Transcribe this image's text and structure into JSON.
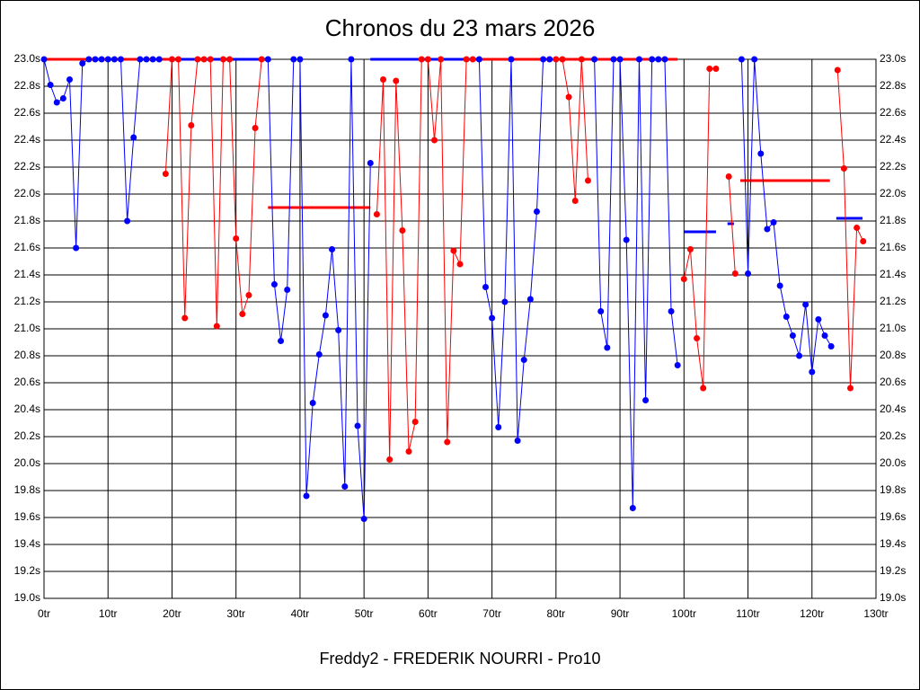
{
  "chart_data": {
    "type": "line",
    "title": "Chronos du 23 mars 2026",
    "x_label": "Freddy2 - FREDERIK NOURRI - Pro10",
    "x": [
      0,
      1,
      2,
      3,
      4,
      5,
      6,
      7,
      8,
      9,
      10,
      11,
      12,
      13,
      14,
      15,
      16,
      17,
      18,
      19,
      20,
      21,
      22,
      23,
      24,
      25,
      26,
      27,
      28,
      29,
      30,
      31,
      32,
      33,
      34,
      35,
      36,
      37,
      38,
      39,
      40,
      41,
      42,
      43,
      44,
      45,
      46,
      47,
      48,
      49,
      50,
      51,
      52,
      53,
      54,
      55,
      56,
      57,
      58,
      59,
      60,
      61,
      62,
      63,
      64,
      65,
      66,
      67,
      68,
      69,
      70,
      71,
      72,
      73,
      74,
      75,
      76,
      77,
      78,
      79,
      80,
      81,
      82,
      83,
      84,
      85,
      86,
      87,
      88,
      89,
      90,
      91,
      92,
      93,
      94,
      95,
      96,
      97,
      98,
      99,
      100,
      101,
      102,
      103,
      104,
      105,
      106,
      107,
      108,
      109,
      110,
      111,
      112,
      113,
      114,
      115,
      116,
      117,
      118,
      119,
      120,
      121,
      122,
      123,
      124,
      125,
      126,
      127,
      128
    ],
    "series": [
      {
        "color": "#0000ff",
        "values": [
          23.0,
          22.81,
          22.68,
          22.71,
          22.85,
          21.6,
          22.97,
          23.0,
          23.0,
          23.0,
          23.0,
          23.0,
          23.0,
          21.8,
          22.42,
          23.0,
          23.0,
          23.0,
          23.0,
          null,
          null,
          null,
          null,
          null,
          null,
          null,
          null,
          null,
          null,
          null,
          null,
          null,
          null,
          null,
          null,
          23.0,
          21.33,
          20.91,
          21.29,
          23.0,
          23.0,
          19.76,
          20.45,
          20.81,
          21.1,
          21.59,
          20.99,
          19.83,
          23.0,
          20.28,
          19.59,
          22.23,
          null,
          null,
          null,
          null,
          null,
          null,
          null,
          null,
          null,
          null,
          null,
          null,
          null,
          null,
          null,
          null,
          23.0,
          21.31,
          21.08,
          20.27,
          21.2,
          23.0,
          20.17,
          20.77,
          21.22,
          21.87,
          23.0,
          23.0,
          null,
          null,
          null,
          null,
          null,
          null,
          23.0,
          21.13,
          20.86,
          23.0,
          23.0,
          21.66,
          19.67,
          23.0,
          20.47,
          23.0,
          23.0,
          23.0,
          21.13,
          20.73,
          null,
          null,
          null,
          null,
          null,
          null,
          null,
          null,
          null,
          23.0,
          21.41,
          23.0,
          22.3,
          21.74,
          21.79,
          21.32,
          21.09,
          20.95,
          20.8,
          21.18,
          20.68,
          21.07,
          20.95,
          20.87,
          null,
          null,
          null,
          null,
          null
        ]
      },
      {
        "color": "#ff0000",
        "values": [
          null,
          null,
          null,
          null,
          null,
          null,
          null,
          null,
          null,
          null,
          null,
          null,
          null,
          null,
          null,
          null,
          null,
          null,
          null,
          22.15,
          23.0,
          23.0,
          21.08,
          22.51,
          23.0,
          23.0,
          23.0,
          21.02,
          23.0,
          23.0,
          21.67,
          21.11,
          21.25,
          22.49,
          23.0,
          null,
          null,
          null,
          null,
          null,
          null,
          null,
          null,
          null,
          null,
          null,
          null,
          null,
          null,
          null,
          null,
          null,
          21.85,
          22.85,
          20.03,
          22.84,
          21.73,
          20.09,
          20.31,
          23.0,
          23.0,
          22.4,
          23.0,
          20.16,
          21.58,
          21.48,
          23.0,
          23.0,
          null,
          null,
          null,
          null,
          null,
          null,
          null,
          null,
          null,
          null,
          null,
          null,
          23.0,
          23.0,
          22.72,
          21.95,
          23.0,
          22.1,
          null,
          null,
          null,
          null,
          null,
          null,
          null,
          null,
          null,
          null,
          null,
          null,
          null,
          null,
          21.37,
          21.59,
          20.93,
          20.56,
          22.93,
          22.93,
          null,
          22.13,
          21.41,
          null,
          null,
          null,
          null,
          null,
          null,
          null,
          null,
          null,
          null,
          null,
          null,
          null,
          null,
          null,
          22.92,
          22.19,
          20.56,
          21.75,
          21.65
        ]
      }
    ],
    "reference_lines": [
      {
        "color": "#ff0000",
        "value": 23.0,
        "x": [
          0,
          19.8
        ]
      },
      {
        "color": "#0000ff",
        "value": 23.0,
        "x": [
          19.8,
          35
        ]
      },
      {
        "color": "#ff0000",
        "value": 21.9,
        "x": [
          35,
          51
        ]
      },
      {
        "color": "#0000ff",
        "value": 23.0,
        "x": [
          51,
          68
        ]
      },
      {
        "color": "#ff0000",
        "value": 23.0,
        "x": [
          68,
          99
        ]
      },
      {
        "color": "#0000ff",
        "value": 21.72,
        "x": [
          100,
          105
        ]
      },
      {
        "color": "#0000ff",
        "value": 21.78,
        "x": [
          106.8,
          107.8
        ]
      },
      {
        "color": "#ff0000",
        "value": 22.1,
        "x": [
          108.8,
          122.8
        ]
      },
      {
        "color": "#0000ff",
        "value": 21.82,
        "x": [
          123.8,
          127.9
        ]
      }
    ],
    "xlim": [
      0,
      130
    ],
    "xticks": [
      {
        "value": 0,
        "label": "0tr"
      },
      {
        "value": 10,
        "label": "10tr"
      },
      {
        "value": 20,
        "label": "20tr"
      },
      {
        "value": 30,
        "label": "30tr"
      },
      {
        "value": 40,
        "label": "40tr"
      },
      {
        "value": 50,
        "label": "50tr"
      },
      {
        "value": 60,
        "label": "60tr"
      },
      {
        "value": 70,
        "label": "70tr"
      },
      {
        "value": 80,
        "label": "80tr"
      },
      {
        "value": 90,
        "label": "90tr"
      },
      {
        "value": 100,
        "label": "100tr"
      },
      {
        "value": 110,
        "label": "110tr"
      },
      {
        "value": 120,
        "label": "120tr"
      },
      {
        "value": 130,
        "label": "130tr"
      }
    ],
    "ylim": [
      19.0,
      23.0
    ],
    "yticks": [
      {
        "value": 19.0,
        "label": "19.0s"
      },
      {
        "value": 19.2,
        "label": "19.2s"
      },
      {
        "value": 19.4,
        "label": "19.4s"
      },
      {
        "value": 19.6,
        "label": "19.6s"
      },
      {
        "value": 19.8,
        "label": "19.8s"
      },
      {
        "value": 20.0,
        "label": "20.0s"
      },
      {
        "value": 20.2,
        "label": "20.2s"
      },
      {
        "value": 20.4,
        "label": "20.4s"
      },
      {
        "value": 20.6,
        "label": "20.6s"
      },
      {
        "value": 20.8,
        "label": "20.8s"
      },
      {
        "value": 21.0,
        "label": "21.0s"
      },
      {
        "value": 21.2,
        "label": "21.2s"
      },
      {
        "value": 21.4,
        "label": "21.4s"
      },
      {
        "value": 21.6,
        "label": "21.6s"
      },
      {
        "value": 21.8,
        "label": "21.8s"
      },
      {
        "value": 22.0,
        "label": "22.0s"
      },
      {
        "value": 22.2,
        "label": "22.2s"
      },
      {
        "value": 22.4,
        "label": "22.4s"
      },
      {
        "value": 22.6,
        "label": "22.6s"
      },
      {
        "value": 22.8,
        "label": "22.8s"
      },
      {
        "value": 23.0,
        "label": "23.0s"
      }
    ],
    "grid": true
  }
}
